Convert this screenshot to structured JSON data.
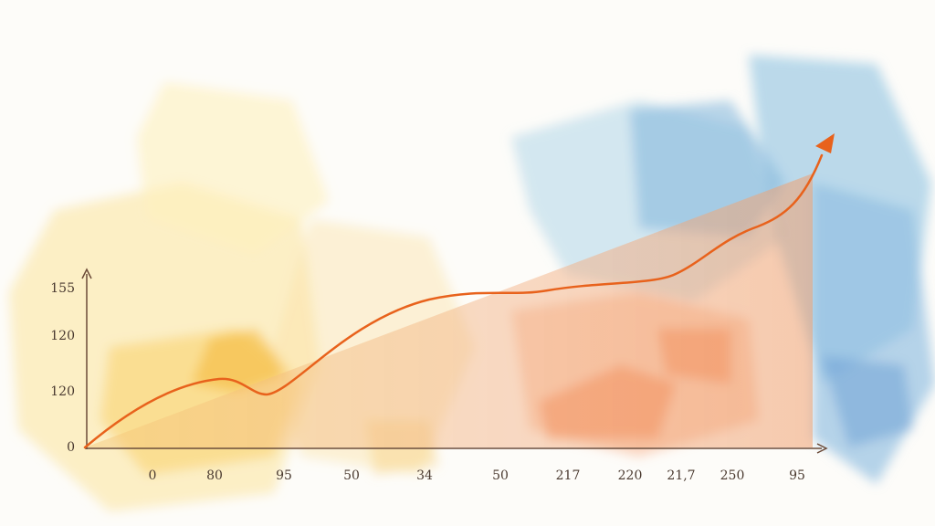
{
  "y_axis": {
    "labels": [
      "155",
      "120",
      "120",
      "0"
    ]
  },
  "x_axis": {
    "labels": [
      "0",
      "80",
      "95",
      "50",
      "34",
      "50",
      "217",
      "220",
      "21,7",
      "250",
      "95"
    ]
  }
}
